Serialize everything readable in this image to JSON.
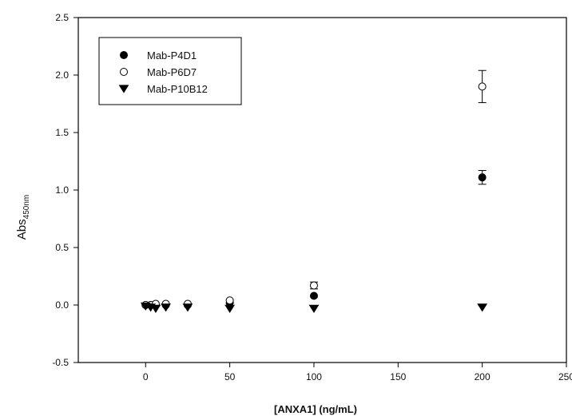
{
  "chart_data": {
    "type": "scatter",
    "xlabel": "[ANXA1] (ng/mL)",
    "ylabel": "Abs",
    "ylabel_subscript": "450nm",
    "xlim": [
      -40,
      250
    ],
    "ylim": [
      -0.5,
      2.5
    ],
    "x_ticks": [
      0,
      50,
      100,
      150,
      200,
      250
    ],
    "y_ticks": [
      -0.5,
      0.0,
      0.5,
      1.0,
      1.5,
      2.0,
      2.5
    ],
    "x_tick_labels": [
      "0",
      "50",
      "100",
      "150",
      "200",
      "250"
    ],
    "y_tick_labels": [
      "-0.5",
      "0.0",
      "0.5",
      "1.0",
      "1.5",
      "2.0",
      "2.5"
    ],
    "grid": false,
    "legend_position": "top-left",
    "series": [
      {
        "name": "Mab-P4D1",
        "marker": "filled-circle",
        "x": [
          0,
          3,
          6,
          12,
          25,
          50,
          100,
          200
        ],
        "y": [
          0.0,
          0.0,
          0.0,
          0.0,
          0.0,
          0.02,
          0.08,
          1.11
        ],
        "err": [
          0,
          0,
          0,
          0,
          0,
          0,
          0,
          0.06
        ]
      },
      {
        "name": "Mab-P6D7",
        "marker": "open-circle",
        "x": [
          0,
          3,
          6,
          12,
          25,
          50,
          100,
          200
        ],
        "y": [
          0.0,
          0.0,
          0.01,
          0.01,
          0.01,
          0.04,
          0.17,
          1.9
        ],
        "err": [
          0,
          0,
          0,
          0,
          0,
          0,
          0.03,
          0.14
        ]
      },
      {
        "name": "Mab-P10B12",
        "marker": "filled-triangle-down",
        "x": [
          0,
          3,
          6,
          12,
          25,
          50,
          100,
          200
        ],
        "y": [
          -0.01,
          -0.02,
          -0.03,
          -0.02,
          -0.02,
          -0.03,
          -0.03,
          -0.02
        ],
        "err": [
          0,
          0,
          0,
          0,
          0,
          0,
          0,
          0
        ]
      }
    ]
  }
}
